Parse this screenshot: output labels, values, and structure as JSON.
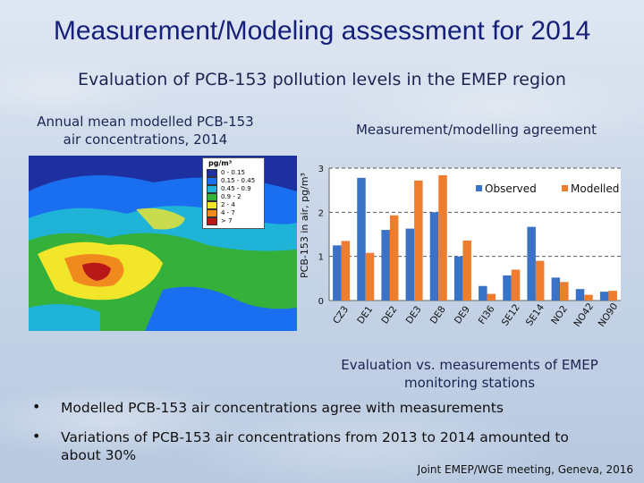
{
  "title": "Measurement/Modeling assessment for 2014",
  "subtitle": "Evaluation of PCB-153 pollution levels in the EMEP region",
  "map": {
    "caption_line1": "Annual mean modelled PCB-153",
    "caption_line2": "air concentrations, 2014",
    "legend_unit": "pg/m³",
    "legend": [
      {
        "label": "0 - 0.15",
        "color": "#1e2fa0"
      },
      {
        "label": "0.15 - 0.45",
        "color": "#1a6ef0"
      },
      {
        "label": "0.45 - 0.9",
        "color": "#1fb3d8"
      },
      {
        "label": "0.9 - 2",
        "color": "#35b03a"
      },
      {
        "label": "2 - 4",
        "color": "#f2e62a"
      },
      {
        "label": "4 - 7",
        "color": "#f08a1e"
      },
      {
        "label": "> 7",
        "color": "#b81818"
      }
    ]
  },
  "chart": {
    "caption": "Measurement/modelling agreement",
    "eval_line1": "Evaluation vs. measurements of EMEP",
    "eval_line2": "monitoring stations"
  },
  "chart_data": {
    "type": "bar",
    "categories": [
      "CZ3",
      "DE1",
      "DE2",
      "DE3",
      "DE8",
      "DE9",
      "FI36",
      "SE12",
      "SE14",
      "NO2",
      "NO42",
      "NO90"
    ],
    "series": [
      {
        "name": "Observed",
        "color": "#3a72c8",
        "values": [
          1.25,
          2.78,
          1.6,
          1.63,
          2.0,
          1.0,
          0.33,
          0.57,
          1.67,
          0.52,
          0.26,
          0.2
        ]
      },
      {
        "name": "Modelled",
        "color": "#ee7d2e",
        "values": [
          1.35,
          1.08,
          1.93,
          2.72,
          2.84,
          1.36,
          0.15,
          0.7,
          0.9,
          0.42,
          0.13,
          0.22
        ]
      }
    ],
    "ylabel": "PCB-153 in air, pg/m³",
    "yticks": [
      "0",
      "1",
      "2",
      "3"
    ],
    "ylim": [
      0,
      3
    ],
    "grid": true,
    "legend_position": "top-right"
  },
  "bullets": [
    "Modelled PCB-153 air concentrations agree with measurements",
    "Variations of PCB-153 air concentrations from 2013 to 2014 amounted to",
    "about 30%"
  ],
  "bullet_symbol": "•",
  "footer": "Joint EMEP/WGE meeting, Geneva, 2016"
}
